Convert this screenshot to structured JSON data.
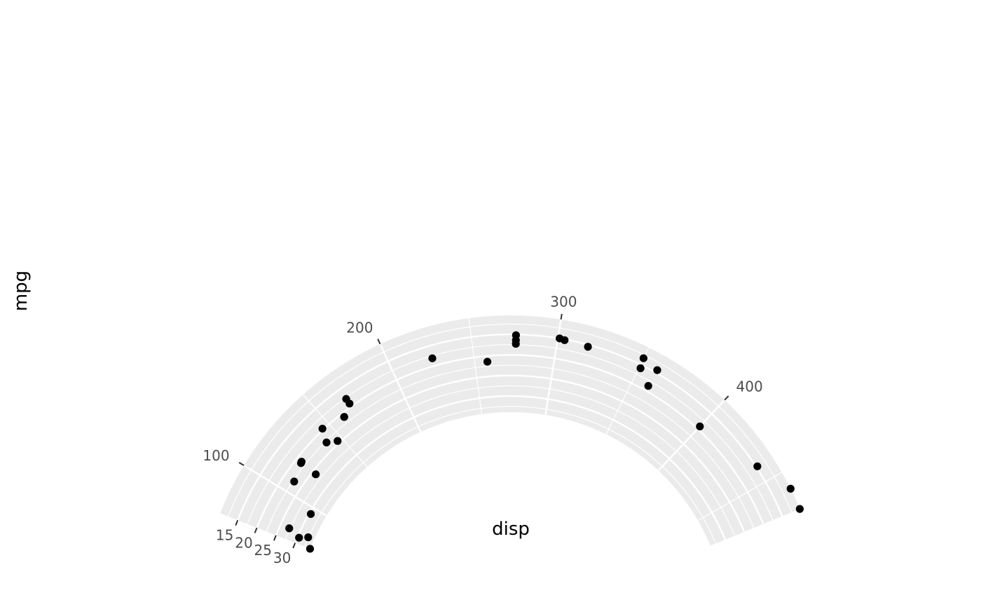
{
  "chart_data": {
    "type": "scatter",
    "coord": "radial (partial polar): disp mapped to angle, mpg mapped to radius (reversed)",
    "xlabel": "disp",
    "ylabel": "mpg",
    "x_ticks": [
      100,
      200,
      300,
      400
    ],
    "x_tick_labels": [
      "100",
      "200",
      "300",
      "400"
    ],
    "y_ticks": [
      15,
      20,
      25,
      30
    ],
    "y_tick_labels": [
      "15",
      "20",
      "25",
      "30"
    ],
    "xlim": [
      71.1,
      472
    ],
    "ylim": [
      10.4,
      33.9
    ],
    "grid": true,
    "legend": "none",
    "point_color": "#000000",
    "panel_color": "#ebebeb",
    "grid_color": "#ffffff",
    "points": [
      {
        "x": 160,
        "y": 21.0
      },
      {
        "x": 160,
        "y": 21.0
      },
      {
        "x": 108,
        "y": 22.8
      },
      {
        "x": 258,
        "y": 21.4
      },
      {
        "x": 360,
        "y": 18.7
      },
      {
        "x": 225,
        "y": 18.1
      },
      {
        "x": 360,
        "y": 14.3
      },
      {
        "x": 146.7,
        "y": 24.4
      },
      {
        "x": 140.8,
        "y": 22.8
      },
      {
        "x": 167.6,
        "y": 19.2
      },
      {
        "x": 167.6,
        "y": 17.8
      },
      {
        "x": 275.8,
        "y": 16.4
      },
      {
        "x": 275.8,
        "y": 17.3
      },
      {
        "x": 275.8,
        "y": 15.2
      },
      {
        "x": 472,
        "y": 10.4
      },
      {
        "x": 460,
        "y": 10.4
      },
      {
        "x": 440,
        "y": 14.7
      },
      {
        "x": 78.7,
        "y": 32.4
      },
      {
        "x": 75.7,
        "y": 30.4
      },
      {
        "x": 71.1,
        "y": 33.9
      },
      {
        "x": 120.1,
        "y": 21.5
      },
      {
        "x": 318,
        "y": 15.5
      },
      {
        "x": 304,
        "y": 15.2
      },
      {
        "x": 350,
        "y": 13.3
      },
      {
        "x": 400,
        "y": 19.2
      },
      {
        "x": 79,
        "y": 27.3
      },
      {
        "x": 120.3,
        "y": 26.0
      },
      {
        "x": 95.1,
        "y": 30.4
      },
      {
        "x": 351,
        "y": 15.8
      },
      {
        "x": 145,
        "y": 19.7
      },
      {
        "x": 301,
        "y": 15.0
      },
      {
        "x": 121,
        "y": 21.4
      }
    ]
  }
}
